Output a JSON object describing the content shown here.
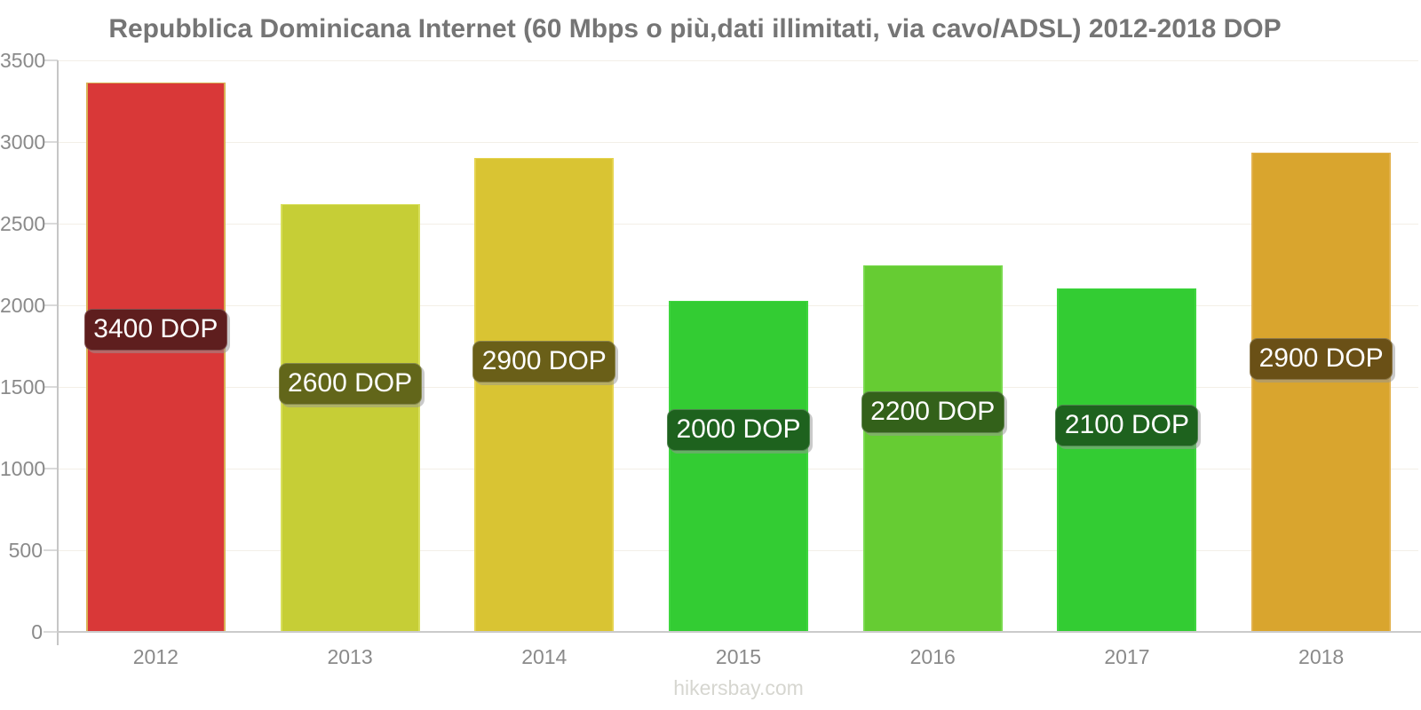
{
  "footer": "hikersbay.com",
  "chart_data": {
    "type": "bar",
    "title": "Repubblica Dominicana Internet (60 Mbps o più,dati illimitati, via cavo/ADSL) 2012-2018 DOP",
    "categories": [
      "2012",
      "2013",
      "2014",
      "2015",
      "2016",
      "2017",
      "2018"
    ],
    "values": [
      3366,
      2620,
      2902,
      2027,
      2245,
      2103,
      2935
    ],
    "bar_labels": [
      "3400 DOP",
      "2600 DOP",
      "2900 DOP",
      "2000 DOP",
      "2200 DOP",
      "2100 DOP",
      "2900 DOP"
    ],
    "unit": "DOP",
    "bar_colors": [
      "#d93838",
      "#c6ce36",
      "#d9c433",
      "#33cc33",
      "#66cc33",
      "#33cc33",
      "#d9a52e"
    ],
    "bar_edge_colors": [
      "#d9b255",
      "#d8df5c",
      "#e5d34f",
      "#3fd63f",
      "#79d94e",
      "#3fd63f",
      "#e2b14c"
    ],
    "label_bg_colors": [
      "#5e1e1e",
      "#62661a",
      "#6a5f18",
      "#1e621e",
      "#33611a",
      "#1e621e",
      "#6a5016"
    ],
    "label_text_color": "#ffffff",
    "y_ticks": [
      0,
      500,
      1000,
      1500,
      2000,
      2500,
      3000,
      3500
    ],
    "ylim": [
      0,
      3500
    ],
    "xlabel": "",
    "ylabel": "",
    "grid": true,
    "legend": false,
    "label_pos_frac_from_bottom": [
      0.55,
      0.58,
      0.57,
      0.61,
      0.6,
      0.6,
      0.57
    ],
    "title_color": "#757575",
    "tick_label_color": "#8a8a8a",
    "grid_color": "#f3efe7",
    "axis_color": "#c6c6c6",
    "footer_color": "#d6d6d0"
  }
}
